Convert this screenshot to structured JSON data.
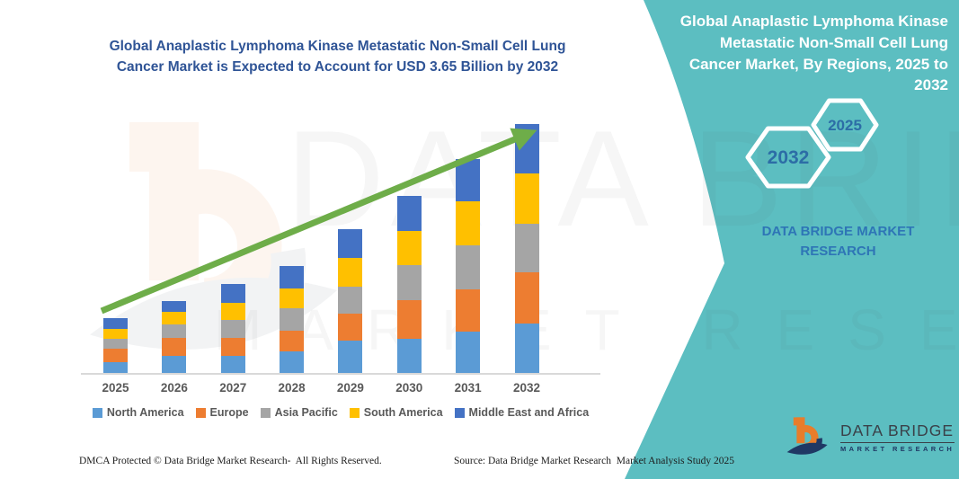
{
  "left": {
    "title": "Global Anaplastic Lymphoma Kinase Metastatic Non-Small Cell Lung Cancer Market is Expected to Account for USD 3.65 Billion by 2032"
  },
  "chart_data": {
    "type": "bar",
    "stacked": true,
    "title": "Global Anaplastic Lymphoma Kinase Metastatic Non-Small Cell Lung Cancer Market is Expected to Account for USD 3.65 Billion by 2032",
    "unit": "USD Billion",
    "xlabel": "",
    "ylabel": "",
    "ylim": [
      0,
      3.8
    ],
    "grid": false,
    "legend_position": "bottom",
    "categories": [
      "2025",
      "2026",
      "2027",
      "2028",
      "2029",
      "2030",
      "2031",
      "2032"
    ],
    "series": [
      {
        "name": "North America",
        "color": "#5B9BD5",
        "values": [
          0.16,
          0.25,
          0.25,
          0.31,
          0.48,
          0.5,
          0.61,
          0.73
        ]
      },
      {
        "name": "Europe",
        "color": "#ED7D31",
        "values": [
          0.19,
          0.26,
          0.26,
          0.31,
          0.39,
          0.57,
          0.62,
          0.74
        ]
      },
      {
        "name": "Asia Pacific",
        "color": "#A5A5A5",
        "values": [
          0.15,
          0.2,
          0.26,
          0.33,
          0.4,
          0.51,
          0.64,
          0.72
        ]
      },
      {
        "name": "South America",
        "color": "#FFC000",
        "values": [
          0.14,
          0.18,
          0.26,
          0.29,
          0.41,
          0.5,
          0.64,
          0.73
        ]
      },
      {
        "name": "Middle East and Africa",
        "color": "#4472C4",
        "values": [
          0.16,
          0.16,
          0.27,
          0.33,
          0.42,
          0.51,
          0.62,
          0.73
        ]
      }
    ],
    "totals": [
      0.8,
      1.05,
      1.3,
      1.57,
      2.1,
      2.59,
      3.13,
      3.65
    ],
    "annotations": [
      "upward trend arrow from 2025 to 2032"
    ]
  },
  "right_panel": {
    "bg_color": "#5CBEC1",
    "title": "Global Anaplastic Lymphoma Kinase Metastatic Non-Small Cell Lung Cancer Market, By Regions, 2025 to 2032",
    "hexagons": [
      {
        "label": "2032"
      },
      {
        "label": "2025"
      }
    ],
    "brand_text": "DATA BRIDGE MARKET RESEARCH"
  },
  "trend_arrow_color": "#6EAD49",
  "watermark": {
    "line1": "DATA BRIDGE",
    "line2": "MARKET RESEARCH"
  },
  "logo": {
    "name": "DATA BRIDGE",
    "subtitle": "MARKET RESEARCH"
  },
  "footer": {
    "dmca": "DMCA Protected © Data Bridge Market Research-  All Rights Reserved.",
    "source": "Source: Data Bridge Market Research  Market Analysis Study 2025"
  }
}
